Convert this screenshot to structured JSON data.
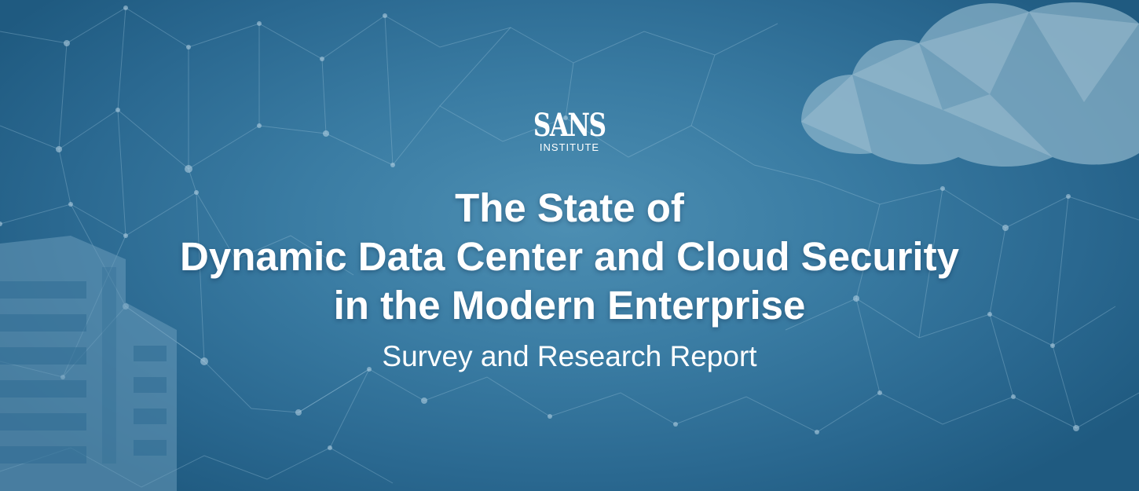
{
  "logo": {
    "wordmark": "SANS",
    "subtext": "INSTITUTE"
  },
  "title": {
    "line1": "The State of",
    "line2": "Dynamic Data Center and Cloud Security",
    "line3": "in the Modern Enterprise"
  },
  "subtitle": "Survey and Research Report",
  "colors": {
    "background": "#2f6f96",
    "text": "#ffffff",
    "cloud": "#8fb6cc",
    "building": "#5f93b3"
  }
}
